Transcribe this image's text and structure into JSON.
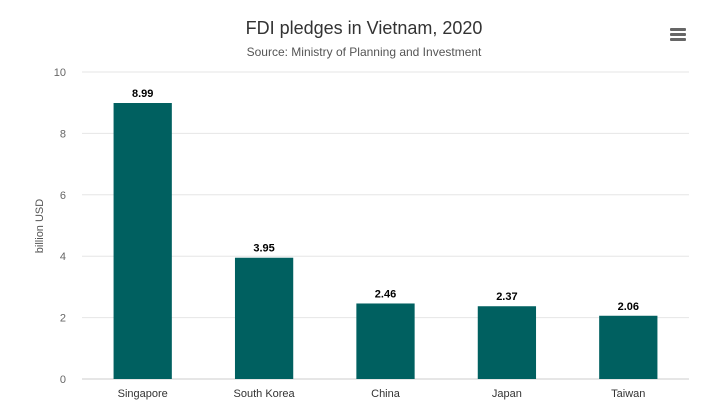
{
  "chart_data": {
    "type": "bar",
    "title": "FDI pledges in Vietnam, 2020",
    "subtitle": "Source: Ministry of Planning and Investment",
    "xlabel": "",
    "ylabel": "billion USD",
    "categories": [
      "Singapore",
      "South Korea",
      "China",
      "Japan",
      "Taiwan"
    ],
    "values": [
      8.99,
      3.95,
      2.46,
      2.37,
      2.06
    ],
    "value_labels": [
      "8.99",
      "3.95",
      "2.46",
      "2.37",
      "2.06"
    ],
    "ylim": [
      0,
      10
    ],
    "yticks": [
      0,
      2,
      4,
      6,
      8,
      10
    ],
    "ytick_labels": [
      "0",
      "2",
      "4",
      "6",
      "8",
      "10"
    ],
    "grid": true,
    "legend": "none",
    "bar_color": "#006060",
    "grid_color": "#e6e6e6"
  },
  "menu": {
    "icon": "hamburger-menu-icon"
  }
}
